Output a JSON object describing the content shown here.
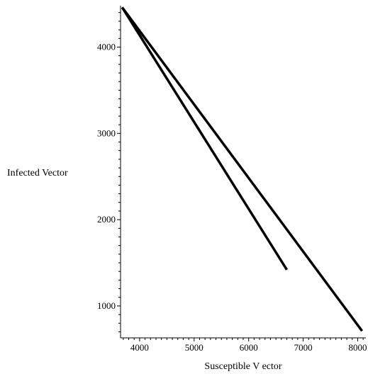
{
  "chart_data": {
    "type": "line",
    "xlabel": "Susceptible V ector",
    "ylabel": "Infected Vector",
    "xlim": [
      3650,
      8150
    ],
    "ylim": [
      630,
      4480
    ],
    "x_ticks": [
      {
        "value": 4000,
        "label": "4000"
      },
      {
        "value": 5000,
        "label": "5000"
      },
      {
        "value": 6000,
        "label": "6000"
      },
      {
        "value": 7000,
        "label": "7000"
      },
      {
        "value": 8000,
        "label": "8000"
      }
    ],
    "y_ticks": [
      {
        "value": 1000,
        "label": "1000"
      },
      {
        "value": 2000,
        "label": "2000"
      },
      {
        "value": 3000,
        "label": "3000"
      },
      {
        "value": 4000,
        "label": "4000"
      }
    ],
    "series": [
      {
        "x": [
          3680,
          8080
        ],
        "y": [
          4460,
          710
        ]
      },
      {
        "x": [
          3680,
          6700
        ],
        "y": [
          4460,
          1420
        ]
      }
    ],
    "colors": {
      "line": "#000000",
      "axis": "#000000"
    }
  }
}
